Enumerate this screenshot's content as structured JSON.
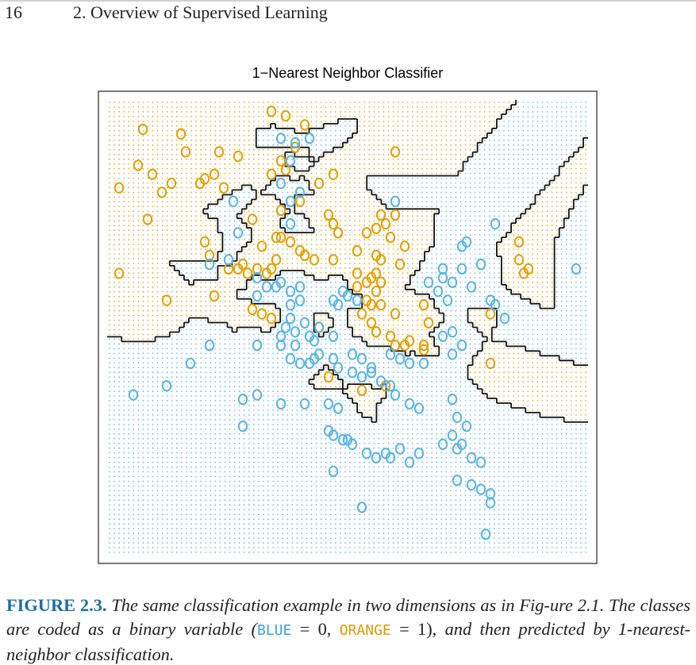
{
  "header": {
    "page_number": "16",
    "chapter_title": "2.  Overview of Supervised Learning"
  },
  "colors": {
    "blue": "#56b4e9",
    "orange": "#e69f00",
    "caption_label": "#1a6fa8"
  },
  "chart_data": {
    "type": "scatter",
    "title": "1−Nearest Neighbor Classifier",
    "xlabel": "",
    "ylabel": "",
    "xlim": [
      0,
      1
    ],
    "ylim": [
      0,
      1
    ],
    "grid": false,
    "legend": "none",
    "background": "class-colored dot grid",
    "boundary": "1-nearest-neighbor decision boundary",
    "series": [
      {
        "color": "orange",
        "points": [
          [
            0.37,
            0.97
          ],
          [
            0.34,
            0.98
          ],
          [
            0.07,
            0.94
          ],
          [
            0.15,
            0.93
          ],
          [
            0.41,
            0.95
          ],
          [
            0.16,
            0.89
          ],
          [
            0.23,
            0.89
          ],
          [
            0.27,
            0.88
          ],
          [
            0.36,
            0.87
          ],
          [
            0.39,
            0.9
          ],
          [
            0.06,
            0.86
          ],
          [
            0.09,
            0.84
          ],
          [
            0.13,
            0.82
          ],
          [
            0.19,
            0.82
          ],
          [
            0.2,
            0.83
          ],
          [
            0.22,
            0.84
          ],
          [
            0.34,
            0.84
          ],
          [
            0.37,
            0.85
          ],
          [
            0.44,
            0.82
          ],
          [
            0.47,
            0.84
          ],
          [
            0.6,
            0.89
          ],
          [
            0.02,
            0.81
          ],
          [
            0.11,
            0.8
          ],
          [
            0.24,
            0.81
          ],
          [
            0.4,
            0.78
          ],
          [
            0.08,
            0.74
          ],
          [
            0.3,
            0.74
          ],
          [
            0.36,
            0.76
          ],
          [
            0.46,
            0.75
          ],
          [
            0.47,
            0.73
          ],
          [
            0.48,
            0.71
          ],
          [
            0.54,
            0.71
          ],
          [
            0.56,
            0.72
          ],
          [
            0.57,
            0.75
          ],
          [
            0.58,
            0.73
          ],
          [
            0.6,
            0.75
          ],
          [
            0.59,
            0.7
          ],
          [
            0.2,
            0.69
          ],
          [
            0.32,
            0.68
          ],
          [
            0.35,
            0.7
          ],
          [
            0.36,
            0.7
          ],
          [
            0.38,
            0.69
          ],
          [
            0.4,
            0.67
          ],
          [
            0.41,
            0.66
          ],
          [
            0.43,
            0.65
          ],
          [
            0.41,
            0.66
          ],
          [
            0.47,
            0.65
          ],
          [
            0.52,
            0.67
          ],
          [
            0.56,
            0.66
          ],
          [
            0.57,
            0.65
          ],
          [
            0.61,
            0.64
          ],
          [
            0.62,
            0.68
          ],
          [
            0.21,
            0.66
          ],
          [
            0.25,
            0.63
          ],
          [
            0.27,
            0.63
          ],
          [
            0.28,
            0.64
          ],
          [
            0.29,
            0.62
          ],
          [
            0.31,
            0.63
          ],
          [
            0.33,
            0.62
          ],
          [
            0.34,
            0.63
          ],
          [
            0.35,
            0.65
          ],
          [
            0.02,
            0.62
          ],
          [
            0.12,
            0.56
          ],
          [
            0.22,
            0.57
          ],
          [
            0.52,
            0.62
          ],
          [
            0.54,
            0.6
          ],
          [
            0.55,
            0.61
          ],
          [
            0.56,
            0.62
          ],
          [
            0.57,
            0.6
          ],
          [
            0.56,
            0.58
          ],
          [
            0.52,
            0.59
          ],
          [
            0.54,
            0.56
          ],
          [
            0.55,
            0.55
          ],
          [
            0.57,
            0.55
          ],
          [
            0.53,
            0.53
          ],
          [
            0.55,
            0.51
          ],
          [
            0.6,
            0.53
          ],
          [
            0.66,
            0.55
          ],
          [
            0.67,
            0.51
          ],
          [
            0.3,
            0.54
          ],
          [
            0.32,
            0.53
          ],
          [
            0.34,
            0.52
          ],
          [
            0.44,
            0.5
          ],
          [
            0.56,
            0.49
          ],
          [
            0.59,
            0.48
          ],
          [
            0.6,
            0.46
          ],
          [
            0.62,
            0.46
          ],
          [
            0.63,
            0.47
          ],
          [
            0.66,
            0.45
          ],
          [
            0.66,
            0.46
          ],
          [
            0.8,
            0.53
          ],
          [
            0.86,
            0.69
          ],
          [
            0.86,
            0.65
          ],
          [
            0.87,
            0.62
          ],
          [
            0.88,
            0.63
          ],
          [
            0.8,
            0.42
          ],
          [
            0.46,
            0.39
          ],
          [
            0.53,
            0.36
          ],
          [
            0.58,
            0.37
          ]
        ]
      },
      {
        "color": "blue",
        "points": [
          [
            0.36,
            0.92
          ],
          [
            0.39,
            0.91
          ],
          [
            0.42,
            0.92
          ],
          [
            0.38,
            0.87
          ],
          [
            0.36,
            0.82
          ],
          [
            0.4,
            0.8
          ],
          [
            0.38,
            0.78
          ],
          [
            0.26,
            0.78
          ],
          [
            0.6,
            0.78
          ],
          [
            0.38,
            0.73
          ],
          [
            0.27,
            0.71
          ],
          [
            0.21,
            0.64
          ],
          [
            0.25,
            0.65
          ],
          [
            0.31,
            0.61
          ],
          [
            0.33,
            0.59
          ],
          [
            0.35,
            0.59
          ],
          [
            0.36,
            0.6
          ],
          [
            0.38,
            0.58
          ],
          [
            0.4,
            0.59
          ],
          [
            0.31,
            0.57
          ],
          [
            0.38,
            0.55
          ],
          [
            0.4,
            0.56
          ],
          [
            0.5,
            0.57
          ],
          [
            0.52,
            0.56
          ],
          [
            0.47,
            0.56
          ],
          [
            0.48,
            0.55
          ],
          [
            0.49,
            0.58
          ],
          [
            0.7,
            0.61
          ],
          [
            0.7,
            0.63
          ],
          [
            0.74,
            0.63
          ],
          [
            0.78,
            0.64
          ],
          [
            0.74,
            0.68
          ],
          [
            0.75,
            0.69
          ],
          [
            0.81,
            0.73
          ],
          [
            0.67,
            0.6
          ],
          [
            0.69,
            0.58
          ],
          [
            0.72,
            0.6
          ],
          [
            0.76,
            0.59
          ],
          [
            0.8,
            0.56
          ],
          [
            0.81,
            0.55
          ],
          [
            0.71,
            0.56
          ],
          [
            0.83,
            0.52
          ],
          [
            0.98,
            0.63
          ],
          [
            0.41,
            0.51
          ],
          [
            0.36,
            0.48
          ],
          [
            0.37,
            0.5
          ],
          [
            0.39,
            0.49
          ],
          [
            0.38,
            0.52
          ],
          [
            0.42,
            0.48
          ],
          [
            0.44,
            0.5
          ],
          [
            0.47,
            0.48
          ],
          [
            0.43,
            0.47
          ],
          [
            0.44,
            0.44
          ],
          [
            0.36,
            0.46
          ],
          [
            0.38,
            0.43
          ],
          [
            0.39,
            0.46
          ],
          [
            0.4,
            0.42
          ],
          [
            0.42,
            0.42
          ],
          [
            0.43,
            0.43
          ],
          [
            0.47,
            0.43
          ],
          [
            0.48,
            0.41
          ],
          [
            0.51,
            0.44
          ],
          [
            0.53,
            0.43
          ],
          [
            0.55,
            0.41
          ],
          [
            0.51,
            0.4
          ],
          [
            0.53,
            0.39
          ],
          [
            0.55,
            0.4
          ],
          [
            0.57,
            0.38
          ],
          [
            0.59,
            0.44
          ],
          [
            0.61,
            0.43
          ],
          [
            0.63,
            0.42
          ],
          [
            0.66,
            0.42
          ],
          [
            0.7,
            0.48
          ],
          [
            0.72,
            0.49
          ],
          [
            0.74,
            0.46
          ],
          [
            0.72,
            0.44
          ],
          [
            0.31,
            0.46
          ],
          [
            0.21,
            0.46
          ],
          [
            0.17,
            0.42
          ],
          [
            0.12,
            0.37
          ],
          [
            0.28,
            0.34
          ],
          [
            0.31,
            0.35
          ],
          [
            0.36,
            0.33
          ],
          [
            0.41,
            0.33
          ],
          [
            0.46,
            0.33
          ],
          [
            0.48,
            0.32
          ],
          [
            0.59,
            0.37
          ],
          [
            0.6,
            0.35
          ],
          [
            0.63,
            0.33
          ],
          [
            0.65,
            0.32
          ],
          [
            0.72,
            0.34
          ],
          [
            0.73,
            0.3
          ],
          [
            0.75,
            0.28
          ],
          [
            0.05,
            0.35
          ],
          [
            0.28,
            0.28
          ],
          [
            0.46,
            0.27
          ],
          [
            0.47,
            0.26
          ],
          [
            0.49,
            0.25
          ],
          [
            0.5,
            0.25
          ],
          [
            0.51,
            0.24
          ],
          [
            0.54,
            0.22
          ],
          [
            0.56,
            0.21
          ],
          [
            0.58,
            0.22
          ],
          [
            0.59,
            0.21
          ],
          [
            0.61,
            0.23
          ],
          [
            0.63,
            0.2
          ],
          [
            0.65,
            0.22
          ],
          [
            0.7,
            0.24
          ],
          [
            0.72,
            0.26
          ],
          [
            0.73,
            0.23
          ],
          [
            0.74,
            0.24
          ],
          [
            0.76,
            0.21
          ],
          [
            0.78,
            0.2
          ],
          [
            0.47,
            0.18
          ],
          [
            0.73,
            0.16
          ],
          [
            0.76,
            0.15
          ],
          [
            0.78,
            0.14
          ],
          [
            0.8,
            0.13
          ],
          [
            0.8,
            0.11
          ],
          [
            0.53,
            0.1
          ],
          [
            0.79,
            0.04
          ]
        ]
      }
    ]
  },
  "caption": {
    "label": "FIGURE 2.3.",
    "text1": "The same classification example in two dimensions as in Fig-ure 2.1. The classes are coded as a binary variable (",
    "blue_code": "BLUE",
    "eq0": " = 0, ",
    "orange_code": "ORANGE",
    "eq1": " = 1), ",
    "text2": "and then predicted by 1-nearest-neighbor classification."
  }
}
